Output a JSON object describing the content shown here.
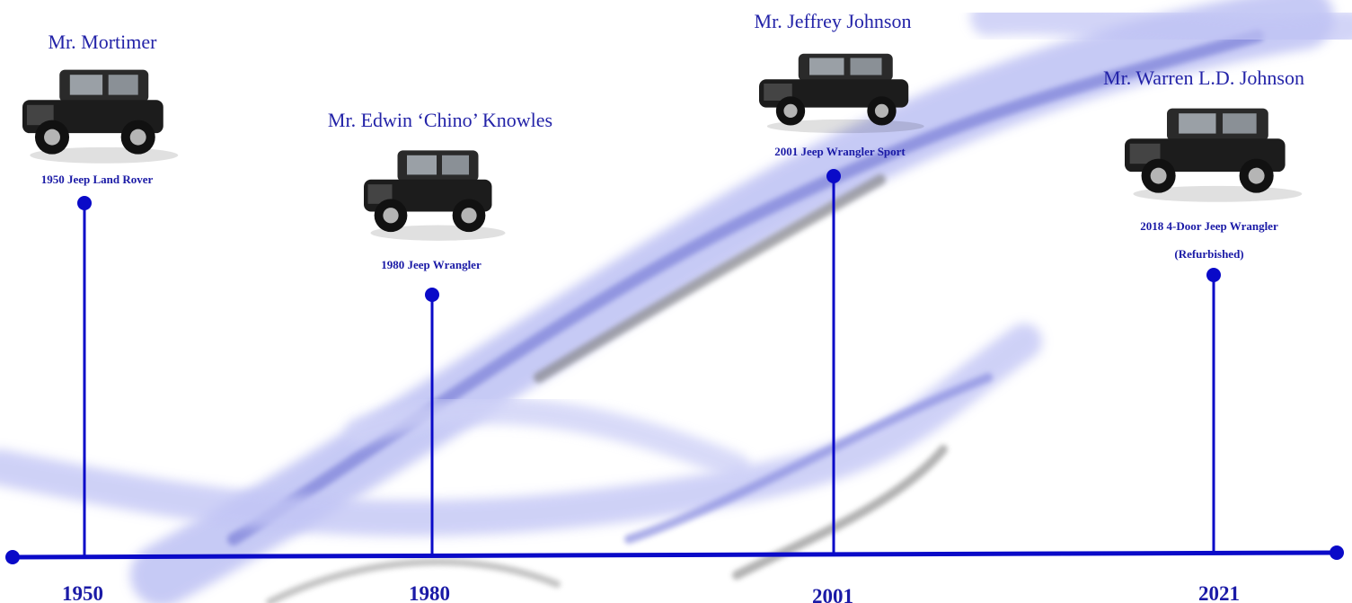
{
  "timeline": {
    "items": [
      {
        "owner": "Mr. Mortimer",
        "vehicle": [
          "1950 Jeep Land Rover"
        ],
        "year": "1950"
      },
      {
        "owner": "Mr. Edwin ‘Chino’ Knowles",
        "vehicle": [
          "1980 Jeep Wrangler"
        ],
        "year": "1980"
      },
      {
        "owner": "Mr. Jeffrey Johnson",
        "vehicle": [
          "2001 Jeep Wrangler Sport"
        ],
        "year": "2001"
      },
      {
        "owner": "Mr. Warren L.D. Johnson",
        "vehicle": [
          "2018 4-Door Jeep Wrangler",
          "(Refurbished)"
        ],
        "year": "2021"
      }
    ]
  }
}
